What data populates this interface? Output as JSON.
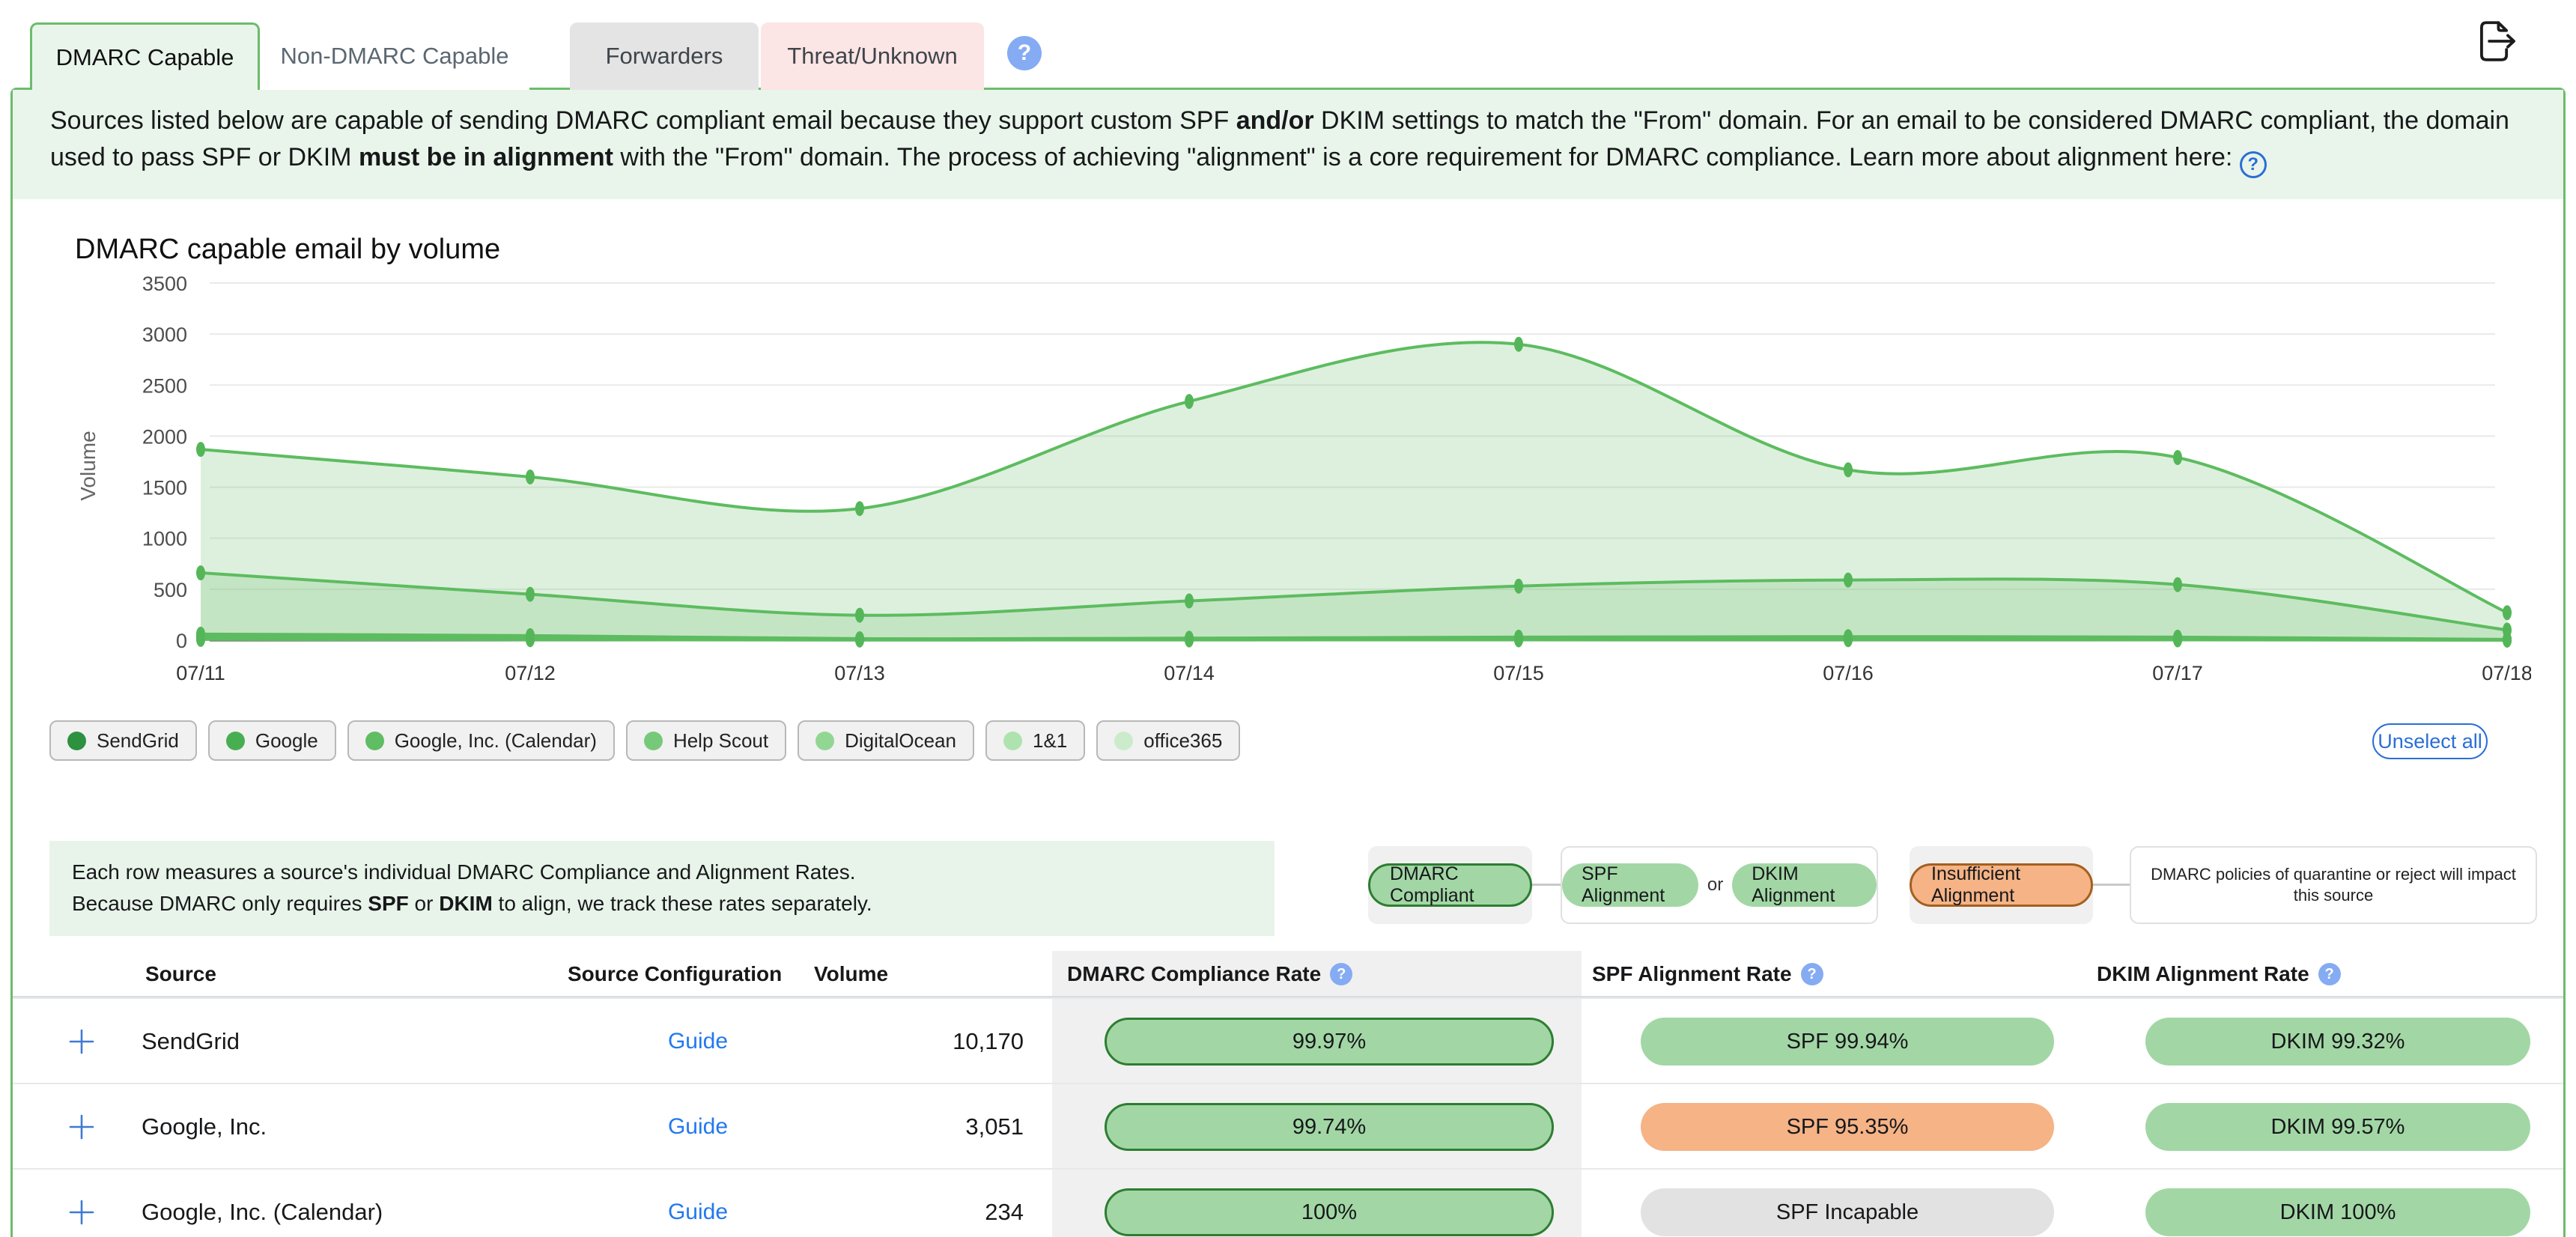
{
  "tabs": [
    {
      "label": "DMARC Capable",
      "active": true
    },
    {
      "label": "Non-DMARC Capable",
      "active": false
    },
    {
      "label": "Forwarders",
      "active": false
    },
    {
      "label": "Threat/Unknown",
      "active": false
    }
  ],
  "icons": {
    "help_glyph": "?"
  },
  "description": {
    "s1": "Sources listed below are capable of sending DMARC compliant email because they support custom SPF ",
    "b1": "and/or",
    "s2": " DKIM settings to match the \"From\" domain. For an email to be considered DMARC compliant, the domain used to pass SPF or DKIM ",
    "b2": "must be in alignment",
    "s3": " with the \"From\" domain. The process of achieving \"alignment\" is a core requirement for DMARC compliance. Learn more about alignment here: "
  },
  "chart_data": {
    "type": "area",
    "title": "DMARC capable email by volume",
    "xlabel": "",
    "ylabel": "Volume",
    "ylim": [
      0,
      3500
    ],
    "yticks": [
      0,
      500,
      1000,
      1500,
      2000,
      2500,
      3000,
      3500
    ],
    "grid": true,
    "legend_position": "bottom",
    "x": [
      "07/11",
      "07/12",
      "07/13",
      "07/14",
      "07/15",
      "07/16",
      "07/17",
      "07/18"
    ],
    "line_color": "#5dbc60",
    "dot_color": "#54b658",
    "area_fill": "#80c982",
    "area_opacity": 0.27,
    "series": [
      {
        "name": "SendGrid",
        "chip_color": "#2d9140",
        "values": [
          1870,
          1600,
          1290,
          2340,
          2900,
          1670,
          1790,
          270
        ]
      },
      {
        "name": "Google",
        "chip_color": "#48ae52",
        "values": [
          660,
          450,
          245,
          385,
          530,
          590,
          545,
          100
        ]
      },
      {
        "name": "Google, Inc. (Calendar)",
        "chip_color": "#5fbd63",
        "values": [
          60,
          45,
          15,
          20,
          30,
          35,
          30,
          8
        ]
      },
      {
        "name": "Help Scout",
        "chip_color": "#77c97a",
        "values": [
          42,
          30,
          10,
          12,
          18,
          22,
          18,
          5
        ]
      },
      {
        "name": "DigitalOcean",
        "chip_color": "#92d694",
        "values": [
          28,
          18,
          6,
          8,
          12,
          14,
          12,
          3
        ]
      },
      {
        "name": "1&1",
        "chip_color": "#aee2af",
        "values": [
          16,
          10,
          4,
          5,
          7,
          8,
          7,
          2
        ]
      },
      {
        "name": "office365",
        "chip_color": "#cbeccb",
        "values": [
          8,
          5,
          2,
          3,
          4,
          5,
          4,
          1
        ]
      }
    ]
  },
  "chart_controls": {
    "unselect_all": "Unselect all"
  },
  "table_note": {
    "line1": "Each row measures a source's individual DMARC Compliance and Alignment Rates.",
    "line2_a": "Because DMARC only requires ",
    "line2_b1": "SPF",
    "line2_mid": " or ",
    "line2_b2": "DKIM",
    "line2_c": " to align, we track these rates separately."
  },
  "rate_legend": {
    "dmarc_compliant": "DMARC Compliant",
    "spf_alignment": "SPF Alignment",
    "or_label": "or",
    "dkim_alignment": "DKIM Alignment",
    "insufficient": "Insufficient Alignment",
    "policy_note": "DMARC policies of quarantine or reject will impact this source"
  },
  "table": {
    "headers": [
      "Source",
      "Source Configuration",
      "Volume",
      "DMARC Compliance Rate",
      "SPF Alignment Rate",
      "DKIM Alignment Rate"
    ],
    "rows": [
      {
        "source": "SendGrid",
        "config_link": "Guide",
        "volume": "10,170",
        "dmarc": {
          "label": "99.97%",
          "style": "green-bordered"
        },
        "spf": {
          "label": "SPF 99.94%",
          "style": "green"
        },
        "dkim": {
          "label": "DKIM 99.32%",
          "style": "green"
        }
      },
      {
        "source": "Google, Inc.",
        "config_link": "Guide",
        "volume": "3,051",
        "dmarc": {
          "label": "99.74%",
          "style": "green-bordered"
        },
        "spf": {
          "label": "SPF 95.35%",
          "style": "orange"
        },
        "dkim": {
          "label": "DKIM 99.57%",
          "style": "green"
        }
      },
      {
        "source": "Google, Inc. (Calendar)",
        "config_link": "Guide",
        "volume": "234",
        "dmarc": {
          "label": "100%",
          "style": "green-bordered"
        },
        "spf": {
          "label": "SPF Incapable",
          "style": "gray"
        },
        "dkim": {
          "label": "DKIM 100%",
          "style": "green"
        }
      }
    ]
  },
  "colors": {
    "accent_green": "#6cbc6c",
    "tab_active_bg": "#e9f5eb",
    "pill_green": "#a2d7a5",
    "pill_green_border": "#2e7d32",
    "pill_orange": "#f5b386",
    "pill_orange_border": "#a55f1e",
    "pill_gray": "#e2e2e2",
    "link_blue": "#2278f0",
    "button_blue": "#2a6fd6",
    "help_badge_blue": "#85abf3"
  }
}
